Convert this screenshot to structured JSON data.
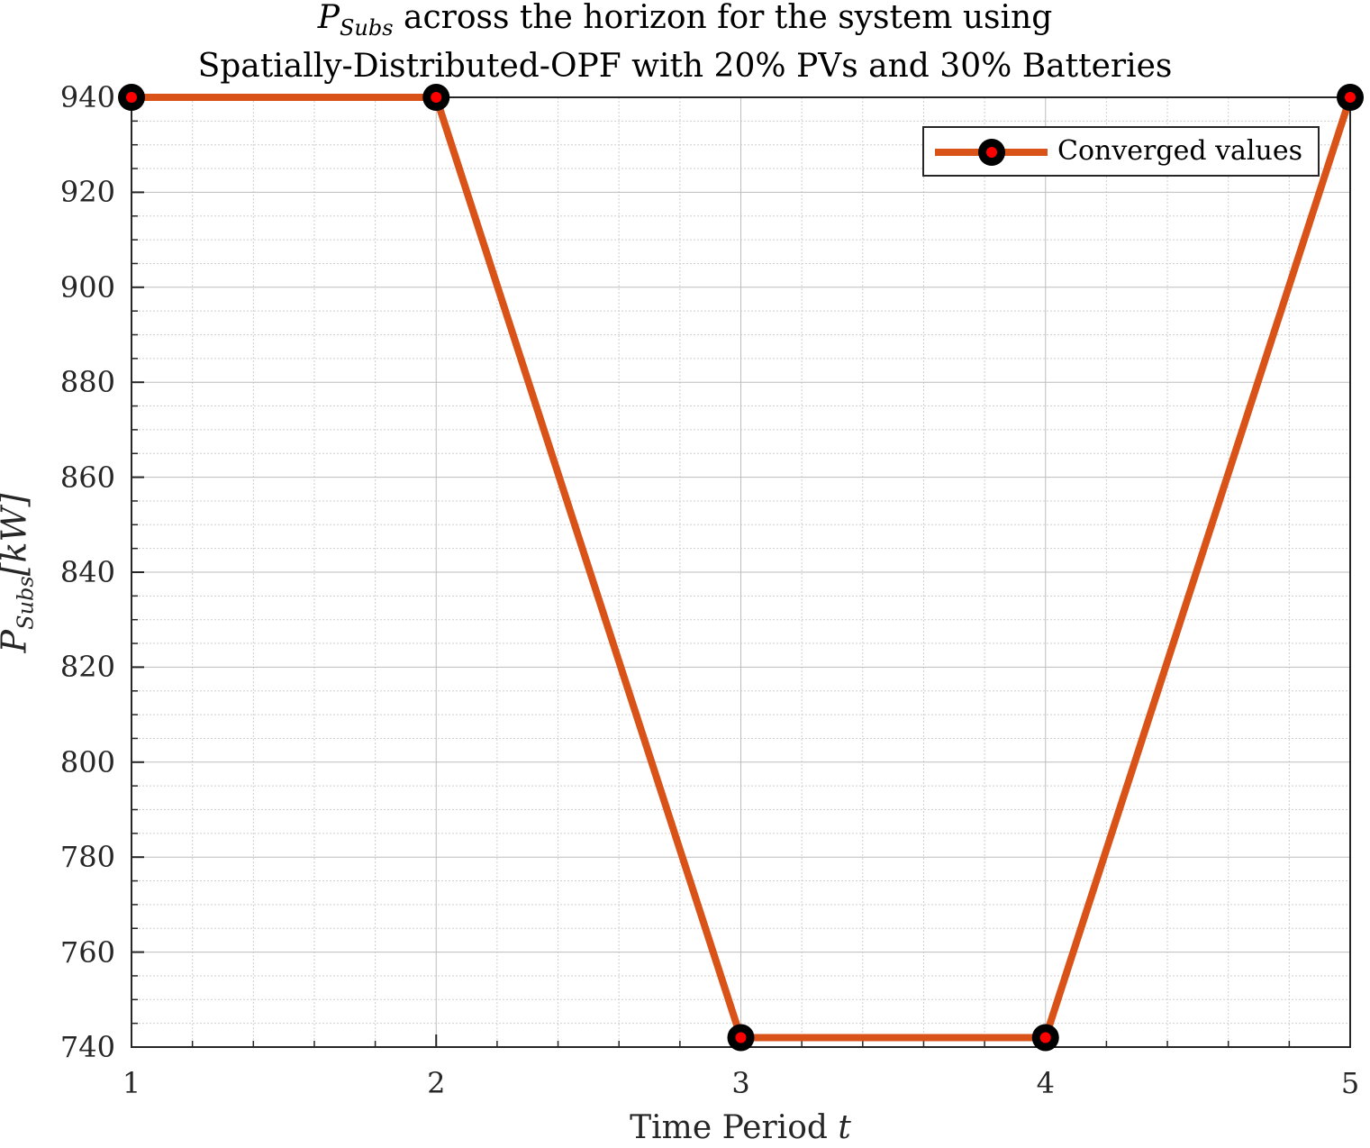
{
  "chart_data": {
    "type": "line",
    "title": {
      "line1_symbol": "P",
      "line1_subscript": "Subs",
      "line1_rest": " across the horizon for the system using",
      "line2": "Spatially-Distributed-OPF with 20% PVs and 30% Batteries"
    },
    "xlabel": {
      "text": "Time Period ",
      "var": "t"
    },
    "ylabel": {
      "symbol": "P",
      "subscript": "Subs",
      "unit": "[kW]"
    },
    "x_ticks": [
      "1",
      "2",
      "3",
      "4",
      "5"
    ],
    "y_ticks": [
      "740",
      "760",
      "780",
      "800",
      "820",
      "840",
      "860",
      "880",
      "900",
      "920",
      "940"
    ],
    "xlim": [
      1,
      5
    ],
    "ylim": [
      740,
      940
    ],
    "grid": true,
    "minor_grid": true,
    "legend_position": "top-right",
    "series": [
      {
        "name": "Converged values",
        "color": "#D95319",
        "marker_edge_color": "#000000",
        "marker_face_color": "#FF0000",
        "x": [
          1,
          2,
          3,
          4,
          5
        ],
        "y": [
          940,
          940,
          742,
          742,
          940
        ]
      }
    ]
  }
}
